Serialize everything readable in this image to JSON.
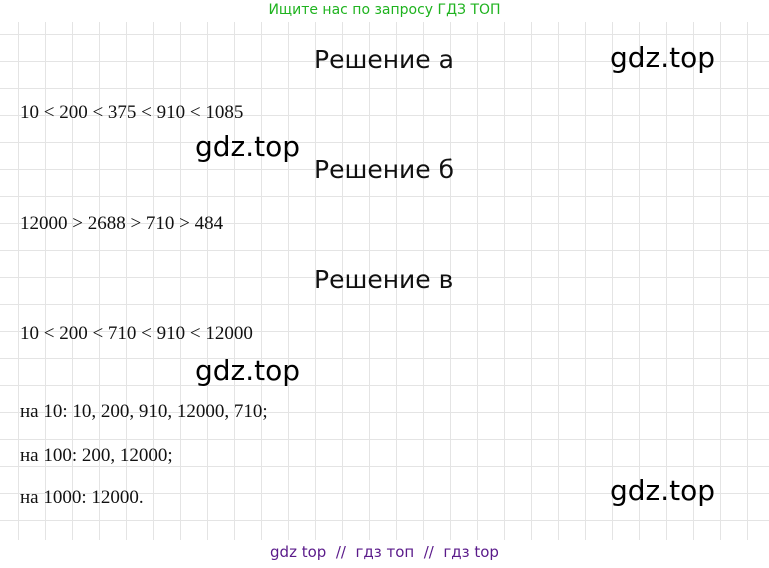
{
  "header": {
    "title": "Ищите нас по запросу ГДЗ ТОП"
  },
  "sections": [
    {
      "title": "Решение а",
      "lines": [
        "10 < 200 < 375 < 910 < 1085"
      ]
    },
    {
      "title": "Решение б",
      "lines": [
        "12000 > 2688 > 710 > 484"
      ]
    },
    {
      "title": "Решение в",
      "lines": [
        "10 < 200 < 710 < 910 < 12000",
        "на 10: 10, 200, 910, 12000, 710;",
        "на 100: 200, 12000;",
        "на 1000: 12000."
      ]
    }
  ],
  "watermarks": [
    "gdz.top",
    "gdz.top",
    "gdz.top",
    "gdz.top"
  ],
  "footer": {
    "text": "gdz top  //  гдз топ  //  гдз top"
  }
}
